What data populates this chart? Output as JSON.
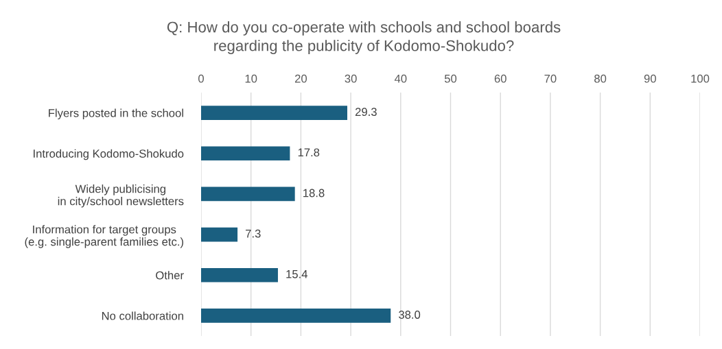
{
  "chart_data": {
    "type": "bar",
    "orientation": "horizontal",
    "title": "Q: How do you co-operate with schools and school boards\nregarding the publicity of Kodomo-Shokudo?",
    "categories": [
      "Flyers posted in the school",
      "Introducing Kodomo-Shokudo",
      "Widely publicising\nin city/school newsletters",
      "Information for target groups\n(e.g. single-parent families etc.)",
      "Other",
      "No collaboration"
    ],
    "values": [
      29.3,
      17.8,
      18.8,
      7.3,
      15.4,
      38.0
    ],
    "value_labels": [
      "29.3",
      "17.8",
      "18.8",
      "7.3",
      "15.4",
      "38.0"
    ],
    "color": "#1a5f80",
    "xlim": [
      0,
      100
    ],
    "xticks": [
      0,
      10,
      20,
      30,
      40,
      50,
      60,
      70,
      80,
      90,
      100
    ],
    "grid": "x"
  }
}
